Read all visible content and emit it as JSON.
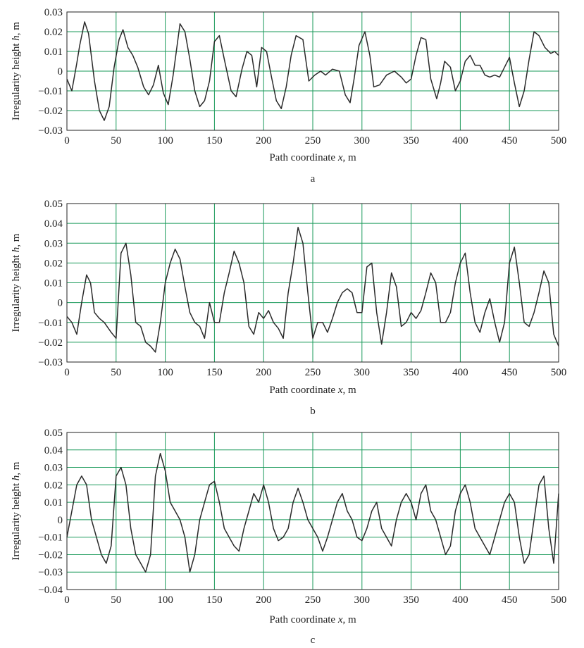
{
  "figure": {
    "line_color": "#2a2a2a",
    "grid_color": "#1a9a5a"
  },
  "chart_data": [
    {
      "type": "line",
      "panel_label": "a",
      "xlabel_pre": "Path coordinate ",
      "xlabel_var": "x",
      "xlabel_post": ", m",
      "ylabel_pre": "Irregularity height ",
      "ylabel_var": "h",
      "ylabel_post": ", m",
      "xlim": [
        0,
        500
      ],
      "ylim": [
        -0.03,
        0.03
      ],
      "xticks": [
        0,
        50,
        100,
        150,
        200,
        250,
        300,
        350,
        400,
        450,
        500
      ],
      "yticks": [
        -0.03,
        -0.02,
        -0.01,
        0,
        0.01,
        0.02,
        0.03
      ],
      "xtick_labels": [
        "0",
        "50",
        "100",
        "150",
        "200",
        "250",
        "300",
        "350",
        "400",
        "450",
        "500"
      ],
      "ytick_labels": [
        "−0.03",
        "−0.02",
        "−0.01",
        "0",
        "0.01",
        "0.02",
        "0.03"
      ],
      "grid": true,
      "x": [
        0,
        5,
        10,
        13,
        18,
        22,
        28,
        33,
        38,
        43,
        48,
        53,
        57,
        62,
        67,
        72,
        78,
        83,
        88,
        93,
        98,
        103,
        108,
        115,
        120,
        125,
        130,
        135,
        140,
        145,
        150,
        155,
        160,
        167,
        172,
        178,
        183,
        188,
        193,
        198,
        203,
        208,
        213,
        218,
        223,
        228,
        233,
        240,
        246,
        252,
        258,
        263,
        270,
        277,
        283,
        288,
        292,
        297,
        303,
        308,
        312,
        318,
        325,
        333,
        340,
        345,
        350,
        355,
        360,
        365,
        370,
        376,
        380,
        384,
        390,
        395,
        400,
        405,
        410,
        415,
        420,
        425,
        430,
        435,
        440,
        445,
        450,
        455,
        460,
        465,
        470,
        475,
        480,
        486,
        492,
        496,
        500
      ],
      "y": [
        -0.004,
        -0.01,
        0.004,
        0.013,
        0.025,
        0.019,
        -0.005,
        -0.02,
        -0.025,
        -0.018,
        0.002,
        0.016,
        0.021,
        0.012,
        0.008,
        0.002,
        -0.008,
        -0.012,
        -0.007,
        0.003,
        -0.011,
        -0.017,
        -0.002,
        0.024,
        0.02,
        0.006,
        -0.01,
        -0.018,
        -0.015,
        -0.005,
        0.015,
        0.018,
        0.006,
        -0.01,
        -0.013,
        0.001,
        0.01,
        0.008,
        -0.008,
        0.012,
        0.01,
        -0.003,
        -0.015,
        -0.019,
        -0.008,
        0.008,
        0.018,
        0.016,
        -0.005,
        -0.002,
        0.0,
        -0.002,
        0.001,
        0.0,
        -0.012,
        -0.016,
        -0.004,
        0.013,
        0.02,
        0.008,
        -0.008,
        -0.007,
        -0.002,
        0.0,
        -0.003,
        -0.006,
        -0.004,
        0.008,
        0.017,
        0.016,
        -0.004,
        -0.014,
        -0.006,
        0.005,
        0.002,
        -0.01,
        -0.005,
        0.005,
        0.008,
        0.003,
        0.003,
        -0.002,
        -0.003,
        -0.002,
        -0.003,
        0.002,
        0.007,
        -0.006,
        -0.018,
        -0.01,
        0.006,
        0.02,
        0.018,
        0.012,
        0.009,
        0.01,
        0.008
      ]
    },
    {
      "type": "line",
      "panel_label": "b",
      "xlabel_pre": "Path coordinate ",
      "xlabel_var": "x",
      "xlabel_post": ", m",
      "ylabel_pre": "Irregularity height ",
      "ylabel_var": "h",
      "ylabel_post": ", m",
      "xlim": [
        0,
        500
      ],
      "ylim": [
        -0.03,
        0.05
      ],
      "xticks": [
        0,
        50,
        100,
        150,
        200,
        250,
        300,
        350,
        400,
        450,
        500
      ],
      "yticks": [
        -0.03,
        -0.02,
        -0.01,
        0,
        0.01,
        0.02,
        0.03,
        0.04,
        0.05
      ],
      "xtick_labels": [
        "0",
        "50",
        "100",
        "150",
        "200",
        "250",
        "300",
        "350",
        "400",
        "450",
        "500"
      ],
      "ytick_labels": [
        "−0.03",
        "−0.02",
        "−0.01",
        "0",
        "0.01",
        "0.02",
        "0.03",
        "0.04",
        "0.05"
      ],
      "grid": true,
      "x": [
        0,
        5,
        10,
        15,
        20,
        24,
        28,
        33,
        38,
        45,
        50,
        55,
        60,
        65,
        70,
        75,
        80,
        85,
        90,
        95,
        100,
        105,
        110,
        115,
        120,
        125,
        130,
        135,
        140,
        145,
        150,
        155,
        160,
        165,
        170,
        175,
        180,
        185,
        190,
        195,
        200,
        205,
        210,
        215,
        220,
        225,
        230,
        235,
        240,
        245,
        250,
        255,
        260,
        265,
        270,
        275,
        280,
        285,
        290,
        295,
        300,
        305,
        310,
        315,
        320,
        325,
        330,
        335,
        340,
        345,
        350,
        355,
        360,
        365,
        370,
        375,
        380,
        385,
        390,
        395,
        400,
        405,
        410,
        415,
        420,
        425,
        430,
        435,
        440,
        445,
        450,
        455,
        460,
        465,
        470,
        475,
        480,
        485,
        490,
        495,
        500
      ],
      "y": [
        -0.007,
        -0.01,
        -0.016,
        0.0,
        0.014,
        0.01,
        -0.005,
        -0.008,
        -0.01,
        -0.015,
        -0.018,
        0.025,
        0.03,
        0.014,
        -0.01,
        -0.012,
        -0.02,
        -0.022,
        -0.025,
        -0.01,
        0.01,
        0.02,
        0.027,
        0.022,
        0.008,
        -0.005,
        -0.01,
        -0.012,
        -0.018,
        0.0,
        -0.01,
        -0.01,
        0.005,
        0.015,
        0.026,
        0.02,
        0.01,
        -0.012,
        -0.016,
        -0.005,
        -0.008,
        -0.004,
        -0.01,
        -0.013,
        -0.018,
        0.005,
        0.02,
        0.038,
        0.03,
        0.005,
        -0.018,
        -0.01,
        -0.01,
        -0.015,
        -0.008,
        0.0,
        0.005,
        0.007,
        0.005,
        -0.005,
        -0.005,
        0.018,
        0.02,
        -0.005,
        -0.021,
        -0.005,
        0.015,
        0.008,
        -0.012,
        -0.01,
        -0.005,
        -0.008,
        -0.004,
        0.005,
        0.015,
        0.01,
        -0.01,
        -0.01,
        -0.005,
        0.01,
        0.02,
        0.025,
        0.005,
        -0.01,
        -0.015,
        -0.005,
        0.002,
        -0.01,
        -0.02,
        -0.01,
        0.02,
        0.028,
        0.01,
        -0.01,
        -0.012,
        -0.005,
        0.005,
        0.016,
        0.01,
        -0.016,
        -0.022
      ]
    },
    {
      "type": "line",
      "panel_label": "c",
      "xlabel_pre": "Path coordinate ",
      "xlabel_var": "x",
      "xlabel_post": ", m",
      "ylabel_pre": "Irregularity height ",
      "ylabel_var": "h",
      "ylabel_post": ", m",
      "xlim": [
        0,
        500
      ],
      "ylim": [
        -0.04,
        0.05
      ],
      "xticks": [
        0,
        50,
        100,
        150,
        200,
        250,
        300,
        350,
        400,
        450,
        500
      ],
      "yticks": [
        -0.04,
        -0.03,
        -0.02,
        -0.01,
        0,
        0.01,
        0.02,
        0.03,
        0.04,
        0.05
      ],
      "xtick_labels": [
        "0",
        "50",
        "100",
        "150",
        "200",
        "250",
        "300",
        "350",
        "400",
        "450",
        "500"
      ],
      "ytick_labels": [
        "−0.04",
        "−0.03",
        "−0.02",
        "−0.01",
        "0",
        "0.01",
        "0.02",
        "0.03",
        "0.04",
        "0.05"
      ],
      "grid": true,
      "x": [
        0,
        5,
        10,
        15,
        20,
        25,
        30,
        35,
        40,
        45,
        50,
        55,
        60,
        65,
        70,
        75,
        80,
        85,
        90,
        95,
        100,
        105,
        110,
        115,
        120,
        125,
        130,
        135,
        140,
        145,
        150,
        155,
        160,
        165,
        170,
        175,
        180,
        185,
        190,
        195,
        200,
        205,
        210,
        215,
        220,
        225,
        230,
        235,
        240,
        245,
        250,
        255,
        260,
        265,
        270,
        275,
        280,
        285,
        290,
        295,
        300,
        305,
        310,
        315,
        320,
        325,
        330,
        335,
        340,
        345,
        350,
        355,
        360,
        365,
        370,
        375,
        380,
        385,
        390,
        395,
        400,
        405,
        410,
        415,
        420,
        425,
        430,
        435,
        440,
        445,
        450,
        455,
        460,
        465,
        470,
        475,
        480,
        485,
        490,
        495,
        500
      ],
      "y": [
        -0.01,
        0.005,
        0.02,
        0.025,
        0.02,
        0.0,
        -0.01,
        -0.02,
        -0.025,
        -0.015,
        0.025,
        0.03,
        0.02,
        -0.005,
        -0.02,
        -0.025,
        -0.03,
        -0.02,
        0.025,
        0.038,
        0.028,
        0.01,
        0.005,
        0.0,
        -0.01,
        -0.03,
        -0.02,
        0.0,
        0.01,
        0.02,
        0.022,
        0.01,
        -0.005,
        -0.01,
        -0.015,
        -0.018,
        -0.005,
        0.005,
        0.015,
        0.01,
        0.02,
        0.01,
        -0.005,
        -0.012,
        -0.01,
        -0.005,
        0.01,
        0.018,
        0.01,
        0.0,
        -0.005,
        -0.01,
        -0.018,
        -0.01,
        0.0,
        0.01,
        0.015,
        0.005,
        0.0,
        -0.01,
        -0.012,
        -0.005,
        0.005,
        0.01,
        -0.005,
        -0.01,
        -0.015,
        0.0,
        0.01,
        0.015,
        0.01,
        0.0,
        0.015,
        0.02,
        0.005,
        0.0,
        -0.01,
        -0.02,
        -0.015,
        0.005,
        0.015,
        0.02,
        0.01,
        -0.005,
        -0.01,
        -0.015,
        -0.02,
        -0.01,
        0.0,
        0.01,
        0.015,
        0.01,
        -0.01,
        -0.025,
        -0.02,
        0.0,
        0.02,
        0.025,
        -0.005,
        -0.025,
        0.015
      ]
    }
  ]
}
